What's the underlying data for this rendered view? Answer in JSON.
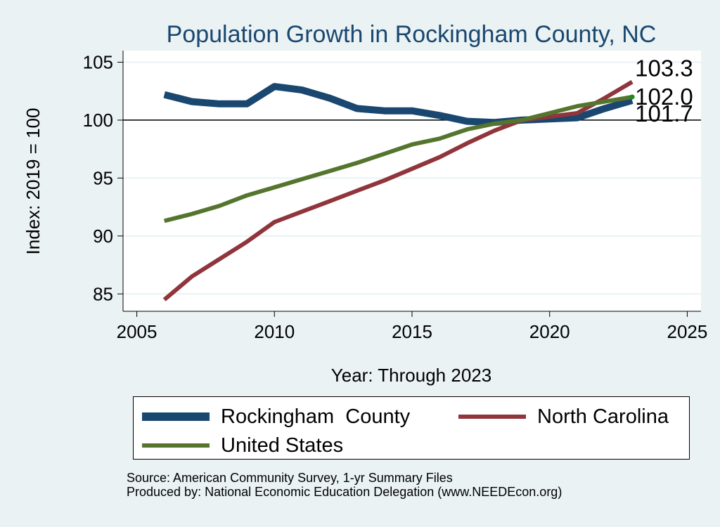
{
  "chart_data": {
    "type": "line",
    "title": "Population Growth in Rockingham County, NC",
    "xlabel": "Year: Through 2023",
    "ylabel": "Index: 2019 = 100",
    "xlim": [
      2004.5,
      2025.5
    ],
    "ylim": [
      83.5,
      106
    ],
    "x_ticks": [
      2005,
      2010,
      2015,
      2020,
      2025
    ],
    "y_ticks": [
      85,
      90,
      95,
      100,
      105
    ],
    "reference_line": 100,
    "grid": true,
    "legend_position": "bottom",
    "x": [
      2006,
      2007,
      2008,
      2009,
      2010,
      2011,
      2012,
      2013,
      2014,
      2015,
      2016,
      2017,
      2018,
      2019,
      2020,
      2021,
      2022,
      2023
    ],
    "series": [
      {
        "name": "Rockingham  County",
        "color": "#1a476f",
        "values": [
          102.2,
          101.6,
          101.4,
          101.4,
          102.9,
          102.6,
          101.9,
          101.0,
          100.8,
          100.8,
          100.4,
          99.9,
          99.8,
          100.0,
          100.1,
          100.2,
          101.0,
          101.7
        ]
      },
      {
        "name": "North Carolina",
        "color": "#90353b",
        "values": [
          84.5,
          86.5,
          88.0,
          89.5,
          91.2,
          92.1,
          93.0,
          93.9,
          94.8,
          95.8,
          96.8,
          98.0,
          99.1,
          100.0,
          100.3,
          100.6,
          101.9,
          103.3
        ]
      },
      {
        "name": "United States",
        "color": "#55752f",
        "values": [
          91.3,
          91.9,
          92.6,
          93.5,
          94.2,
          94.9,
          95.6,
          96.3,
          97.1,
          97.9,
          98.4,
          99.2,
          99.7,
          100.0,
          100.6,
          101.2,
          101.6,
          102.0
        ]
      }
    ],
    "end_labels": [
      "103.3",
      "102.0",
      "101.7"
    ],
    "source_lines": [
      "Source: American Community Survey, 1-yr Summary Files",
      "Produced by: National Economic Education Delegation (www.NEEDEcon.org)"
    ]
  }
}
